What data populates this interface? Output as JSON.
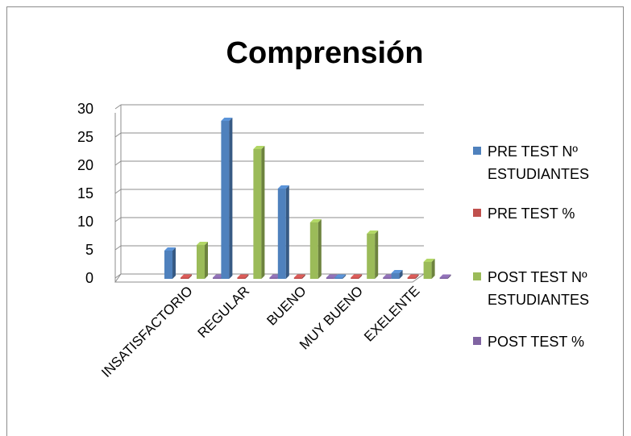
{
  "chart_data": {
    "type": "bar",
    "title": "Comprensión",
    "categories": [
      "INSATISFACTORIO",
      "REGULAR",
      "BUENO",
      "MUY BUENO",
      "EXELENTE"
    ],
    "series": [
      {
        "name": "PRE TEST Nº ESTUDIANTES",
        "name_lines": [
          "PRE TEST Nº",
          "ESTUDIANTES"
        ],
        "color": "#4F81BD",
        "values": [
          5,
          28,
          16,
          0,
          1
        ]
      },
      {
        "name": "PRE TEST %",
        "name_lines": [
          "PRE TEST %"
        ],
        "color": "#C0504D",
        "values": [
          0,
          0.1,
          0.05,
          0,
          0
        ]
      },
      {
        "name": "POST TEST  Nº ESTUDIANTES",
        "name_lines": [
          "POST TEST  Nº",
          "ESTUDIANTES"
        ],
        "color": "#9BBB59",
        "values": [
          6,
          23,
          10,
          8,
          3
        ]
      },
      {
        "name": "POST TEST  %",
        "name_lines": [
          "POST TEST  %"
        ],
        "color": "#8064A2",
        "values": [
          0,
          0,
          0,
          0,
          0
        ]
      }
    ],
    "yticks": [
      0,
      5,
      10,
      15,
      20,
      25,
      30
    ],
    "ylim": [
      0,
      30
    ],
    "grid": true,
    "legend": "right"
  }
}
